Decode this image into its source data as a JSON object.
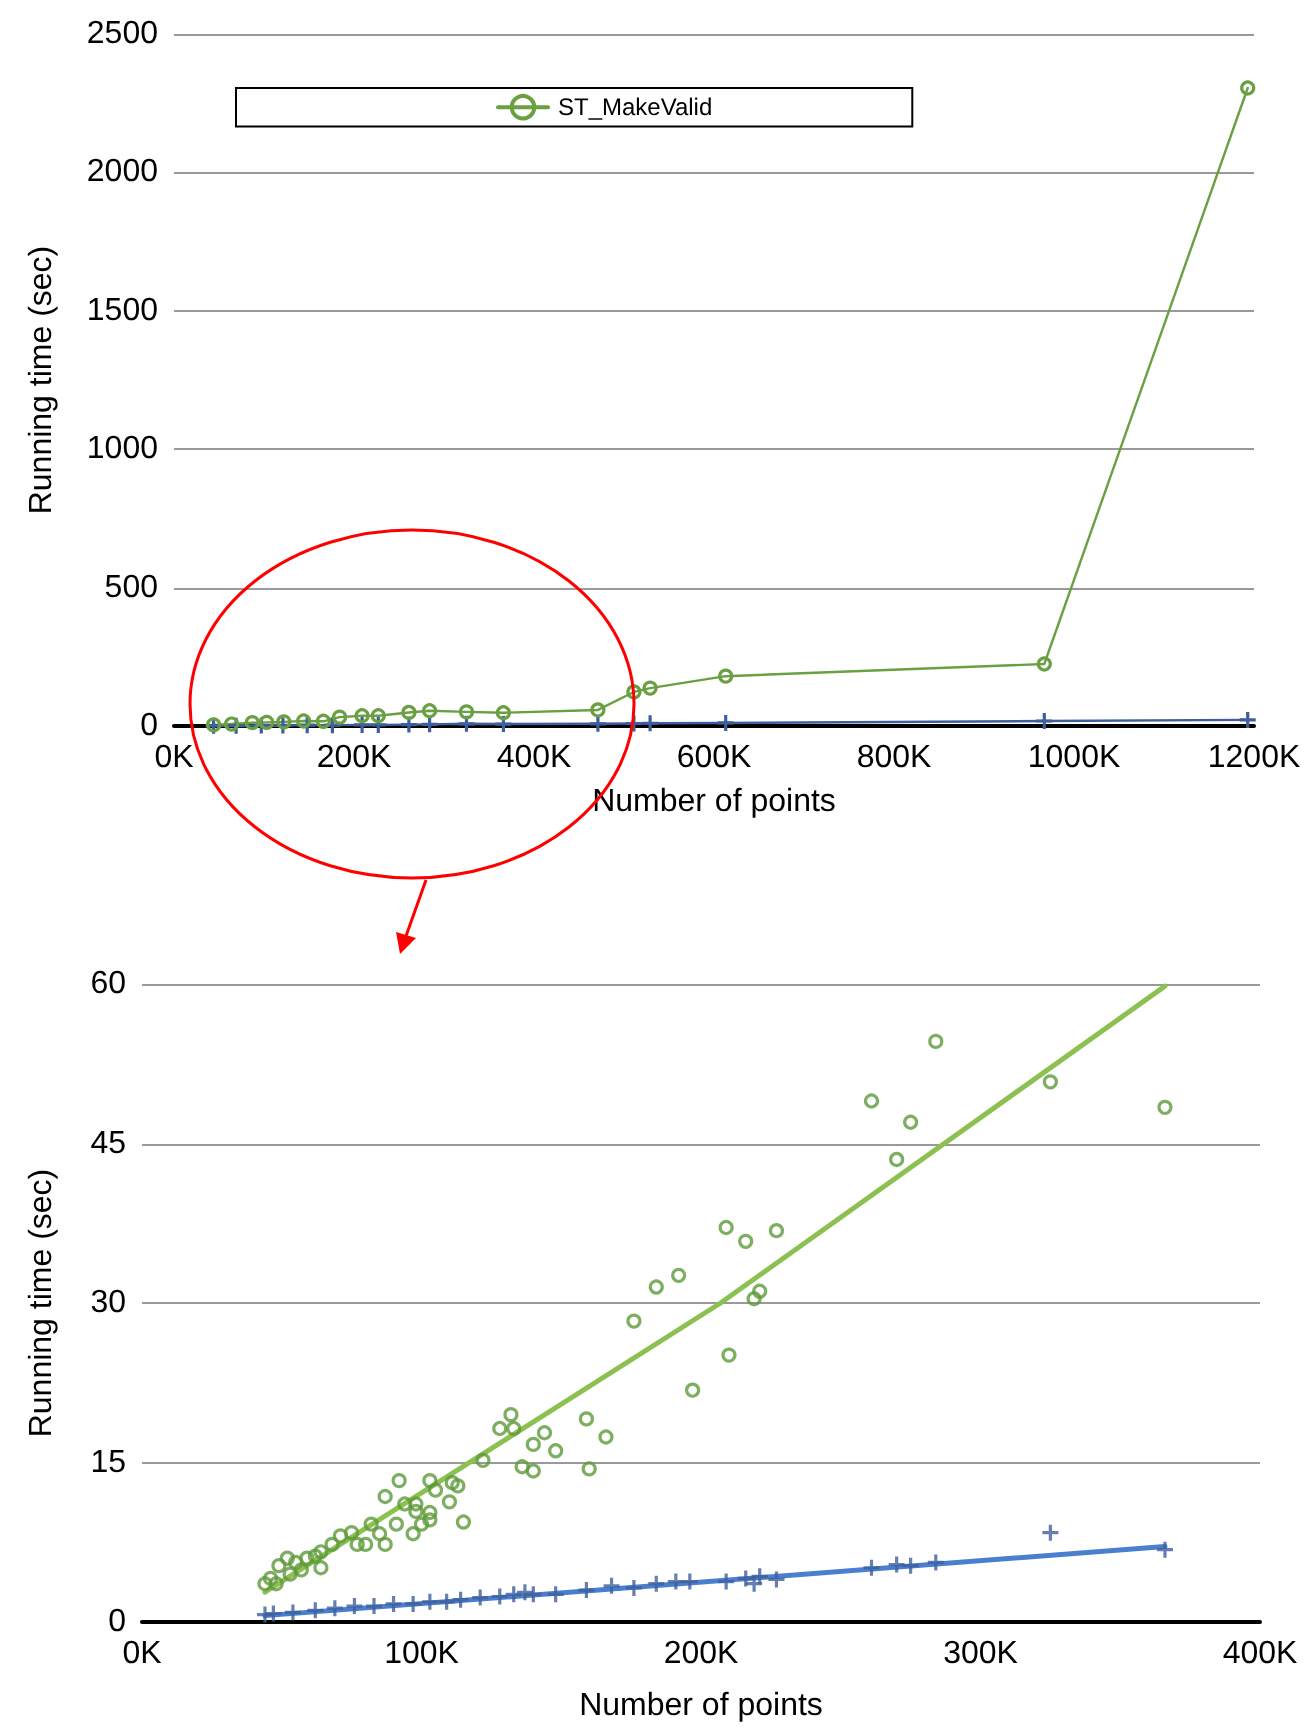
{
  "chart_data": [
    {
      "type": "line",
      "xlabel": "Number of points",
      "ylabel": "Running time (sec)",
      "xlim": [
        0,
        1200
      ],
      "xticks": [
        {
          "value": 0,
          "label": "0K"
        },
        {
          "value": 200,
          "label": "200K"
        },
        {
          "value": 400,
          "label": "400K"
        },
        {
          "value": 600,
          "label": "600K"
        },
        {
          "value": 800,
          "label": "800K"
        },
        {
          "value": 1000,
          "label": "1000K"
        },
        {
          "value": 1200,
          "label": "1200K"
        }
      ],
      "ylim": [
        0,
        2500
      ],
      "yticks": [
        0,
        500,
        1000,
        1500,
        2000,
        2500
      ],
      "grid": "y",
      "legend": "top left",
      "line_style": "solid",
      "series": [
        {
          "color": "#3d5f9c",
          "marker": "cross",
          "x": [
            44,
            69,
            97,
            121,
            148,
            176,
            209,
            227,
            261,
            284,
            325,
            366,
            471,
            511,
            529,
            613,
            967,
            1193
          ],
          "values": [
            1,
            1,
            2,
            2,
            3,
            3,
            4,
            4,
            5,
            6,
            8,
            7,
            8,
            9,
            10,
            11,
            18,
            22
          ]
        },
        {
          "name": "ST_MakeValid",
          "color": "#6a9f42",
          "marker": "circle",
          "x": [
            44,
            64,
            87,
            103,
            122,
            144,
            166,
            184,
            209,
            227,
            261,
            284,
            325,
            366,
            471,
            511,
            529,
            613,
            967,
            1193
          ],
          "values": [
            4,
            7,
            12,
            13,
            15,
            18,
            17,
            32,
            37,
            37,
            49,
            55,
            51,
            48,
            58,
            123,
            137,
            180,
            224,
            2305
          ]
        }
      ]
    },
    {
      "type": "scatter",
      "xlabel": "Number of points",
      "ylabel": "Running time (sec)",
      "xlim": [
        0,
        400
      ],
      "xticks": [
        {
          "value": 0,
          "label": "0K"
        },
        {
          "value": 100,
          "label": "100K"
        },
        {
          "value": 200,
          "label": "200K"
        },
        {
          "value": 300,
          "label": "300K"
        },
        {
          "value": 400,
          "label": "400K"
        }
      ],
      "ylim": [
        0,
        60
      ],
      "yticks": [
        0,
        15,
        30,
        45,
        60
      ],
      "grid": "y",
      "series": [
        {
          "color": "#3d5f9c",
          "marker": "cross",
          "x": [
            44,
            47,
            54,
            62,
            69,
            76,
            83,
            90,
            97,
            103,
            109,
            114,
            121,
            128,
            133,
            137,
            140,
            148,
            159,
            168,
            176,
            184,
            191,
            196,
            209,
            216,
            219,
            221,
            227,
            261,
            270,
            275,
            284,
            325,
            366
          ],
          "values": [
            0.7,
            0.8,
            0.9,
            1.1,
            1.3,
            1.5,
            1.5,
            1.7,
            1.7,
            1.9,
            1.9,
            2.1,
            2.3,
            2.4,
            2.6,
            2.8,
            2.6,
            2.6,
            3.0,
            3.4,
            3.2,
            3.6,
            3.8,
            3.8,
            3.8,
            4.1,
            3.6,
            4.3,
            4.0,
            5.1,
            5.4,
            5.3,
            5.6,
            8.4,
            6.8
          ]
        },
        {
          "color": "#5e9a3a",
          "marker": "circle",
          "x": [
            44,
            46,
            48,
            49,
            52,
            53,
            55,
            57,
            59,
            62,
            64,
            64,
            68,
            71,
            75,
            77,
            80,
            82,
            85,
            87,
            87,
            91,
            92,
            94,
            97,
            98,
            98,
            100,
            103,
            103,
            103,
            105,
            110,
            111,
            113,
            115,
            122,
            128,
            132,
            133,
            136,
            140,
            140,
            144,
            148,
            159,
            160,
            166,
            176,
            184,
            192,
            197,
            209,
            210,
            216,
            219,
            221,
            227,
            261,
            270,
            275,
            284,
            325,
            366
          ],
          "values": [
            3.6,
            4.1,
            3.6,
            5.3,
            6.0,
            4.5,
            5.6,
            4.9,
            6.0,
            6.2,
            6.6,
            5.1,
            7.3,
            8.1,
            8.4,
            7.3,
            7.3,
            9.2,
            8.3,
            7.3,
            11.8,
            9.2,
            13.3,
            11.1,
            8.3,
            11.1,
            10.4,
            9.2,
            13.3,
            10.3,
            9.6,
            12.4,
            11.3,
            13.1,
            12.8,
            9.4,
            15.2,
            18.2,
            19.5,
            18.2,
            14.6,
            16.7,
            14.2,
            17.8,
            16.1,
            19.1,
            14.4,
            17.4,
            28.3,
            31.5,
            32.6,
            21.8,
            37.1,
            25.1,
            35.8,
            30.4,
            31.1,
            36.8,
            49,
            43.5,
            47,
            54.6,
            50.8,
            48.4
          ]
        },
        {
          "type": "line",
          "color": "#4a7fd0",
          "marker": "none",
          "line_style": "solid",
          "x": [
            44,
            366
          ],
          "values": [
            0.6,
            7.1
          ]
        },
        {
          "type": "line",
          "color": "#8cc152",
          "marker": "none",
          "line_style": "solid",
          "x": [
            44,
            207,
            366
          ],
          "values": [
            2.8,
            30.0,
            59.8
          ]
        }
      ]
    }
  ]
}
